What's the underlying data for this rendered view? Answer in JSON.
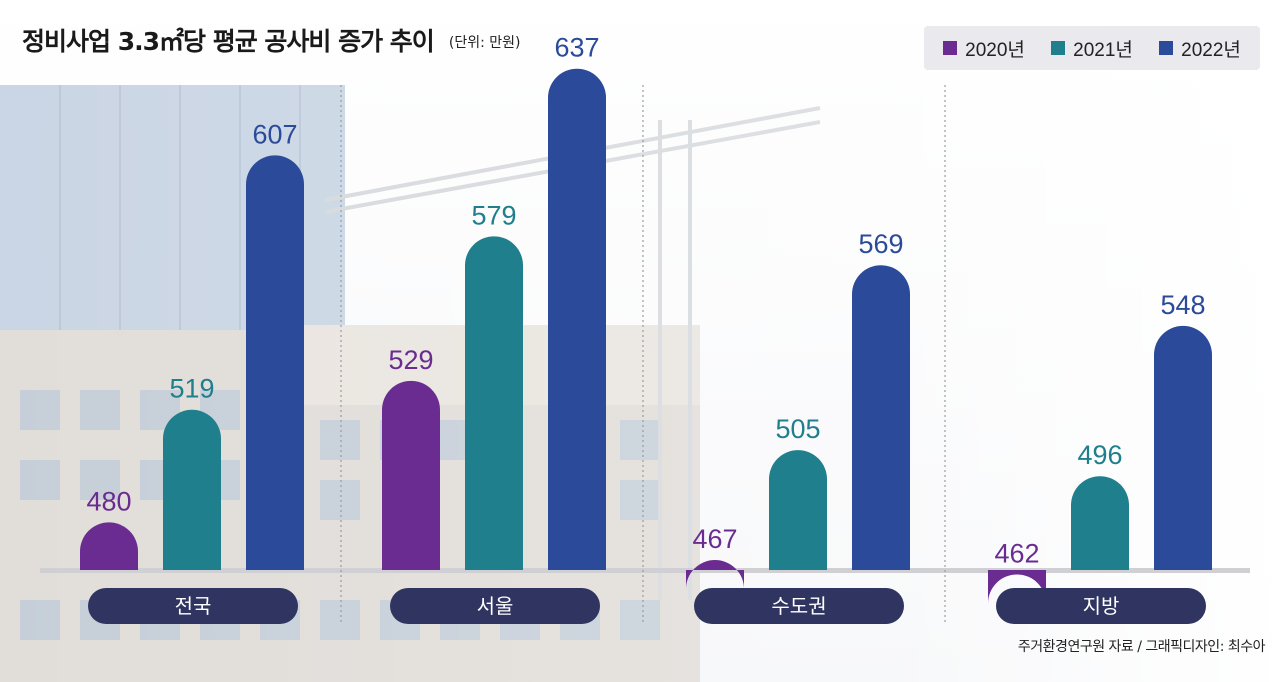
{
  "title": "정비사업 3.3㎡당 평균 공사비 증가 추이",
  "unit": "(단위: 만원)",
  "source": "주거환경연구원 자료 / 그래픽디자인: 최수아",
  "chart_data": {
    "type": "bar",
    "categories": [
      "전국",
      "서울",
      "수도권",
      "지방"
    ],
    "series": [
      {
        "name": "2020년",
        "color": "#6a2c91",
        "values": [
          480,
          529,
          467,
          462
        ]
      },
      {
        "name": "2021년",
        "color": "#1f7f8c",
        "values": [
          519,
          579,
          505,
          496
        ]
      },
      {
        "name": "2022년",
        "color": "#2b4a9a",
        "values": [
          607,
          637,
          569,
          548
        ]
      }
    ],
    "legend_position": "top-right",
    "grid": false,
    "data_labels": true
  },
  "colors": {
    "category_pill": "#2f3560",
    "label_text": "#2b3a7a"
  }
}
